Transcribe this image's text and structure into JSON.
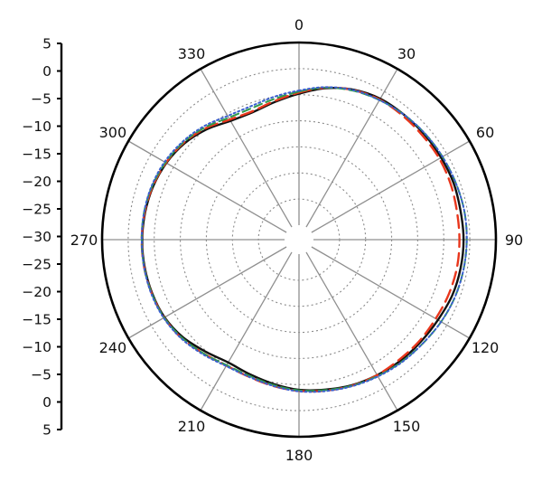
{
  "chart_data": {
    "type": "polar-line",
    "title": "",
    "angle_labels": [
      "0",
      "30",
      "60",
      "90",
      "120",
      "150",
      "180",
      "210",
      "240",
      "270",
      "300",
      "330"
    ],
    "radial_axis": {
      "tick_labels": [
        "5",
        "0",
        "−5",
        "−10",
        "−15",
        "−20",
        "−25",
        "−30",
        "−25",
        "−20",
        "−15",
        "−10",
        "−5",
        "0",
        "5"
      ],
      "min": -30,
      "max": 5,
      "step": 5
    },
    "grid": true,
    "legend": "none",
    "series": [
      {
        "color": "#111111",
        "dash": "solid",
        "points": [
          {
            "angle": 0,
            "value": -4.8
          },
          {
            "angle": 10,
            "value": -3.3
          },
          {
            "angle": 20,
            "value": -2.2
          },
          {
            "angle": 30,
            "value": -1.6
          },
          {
            "angle": 40,
            "value": -1.5
          },
          {
            "angle": 50,
            "value": -1.4
          },
          {
            "angle": 60,
            "value": -1.3
          },
          {
            "angle": 70,
            "value": -1.2
          },
          {
            "angle": 80,
            "value": -1.3
          },
          {
            "angle": 90,
            "value": -1.2
          },
          {
            "angle": 100,
            "value": -1.3
          },
          {
            "angle": 110,
            "value": -1.5
          },
          {
            "angle": 120,
            "value": -2.0
          },
          {
            "angle": 130,
            "value": -2.3
          },
          {
            "angle": 140,
            "value": -2.5
          },
          {
            "angle": 150,
            "value": -2.8
          },
          {
            "angle": 160,
            "value": -3.1
          },
          {
            "angle": 170,
            "value": -3.6
          },
          {
            "angle": 180,
            "value": -4.0
          },
          {
            "angle": 190,
            "value": -4.7
          },
          {
            "angle": 200,
            "value": -5.3
          },
          {
            "angle": 210,
            "value": -5.6
          },
          {
            "angle": 220,
            "value": -4.8
          },
          {
            "angle": 230,
            "value": -3.7
          },
          {
            "angle": 240,
            "value": -3.0
          },
          {
            "angle": 250,
            "value": -2.8
          },
          {
            "angle": 260,
            "value": -2.7
          },
          {
            "angle": 270,
            "value": -2.7
          },
          {
            "angle": 280,
            "value": -2.8
          },
          {
            "angle": 290,
            "value": -3.0
          },
          {
            "angle": 300,
            "value": -3.4
          },
          {
            "angle": 310,
            "value": -4.1
          },
          {
            "angle": 320,
            "value": -5.2
          },
          {
            "angle": 330,
            "value": -6.5
          },
          {
            "angle": 340,
            "value": -6.8
          },
          {
            "angle": 350,
            "value": -6.0
          }
        ]
      },
      {
        "color": "#e8361c",
        "dash": "long-dash",
        "points": [
          {
            "angle": 0,
            "value": -4.6
          },
          {
            "angle": 10,
            "value": -3.2
          },
          {
            "angle": 20,
            "value": -2.3
          },
          {
            "angle": 30,
            "value": -1.8
          },
          {
            "angle": 40,
            "value": -1.8
          },
          {
            "angle": 50,
            "value": -1.8
          },
          {
            "angle": 60,
            "value": -1.7
          },
          {
            "angle": 70,
            "value": -1.8
          },
          {
            "angle": 80,
            "value": -2.0
          },
          {
            "angle": 90,
            "value": -2.0
          },
          {
            "angle": 100,
            "value": -2.0
          },
          {
            "angle": 110,
            "value": -2.2
          },
          {
            "angle": 120,
            "value": -2.5
          },
          {
            "angle": 130,
            "value": -2.6
          },
          {
            "angle": 140,
            "value": -2.8
          },
          {
            "angle": 150,
            "value": -2.8
          },
          {
            "angle": 160,
            "value": -3.0
          },
          {
            "angle": 170,
            "value": -3.4
          },
          {
            "angle": 180,
            "value": -3.8
          },
          {
            "angle": 190,
            "value": -4.3
          },
          {
            "angle": 200,
            "value": -4.8
          },
          {
            "angle": 210,
            "value": -4.9
          },
          {
            "angle": 220,
            "value": -4.3
          },
          {
            "angle": 230,
            "value": -3.4
          },
          {
            "angle": 240,
            "value": -2.9
          },
          {
            "angle": 250,
            "value": -2.7
          },
          {
            "angle": 260,
            "value": -2.6
          },
          {
            "angle": 270,
            "value": -2.6
          },
          {
            "angle": 280,
            "value": -2.7
          },
          {
            "angle": 290,
            "value": -2.9
          },
          {
            "angle": 300,
            "value": -3.3
          },
          {
            "angle": 310,
            "value": -3.9
          },
          {
            "angle": 320,
            "value": -4.9
          },
          {
            "angle": 330,
            "value": -6.2
          },
          {
            "angle": 340,
            "value": -6.6
          },
          {
            "angle": 350,
            "value": -5.8
          }
        ]
      },
      {
        "color": "#2f9a4c",
        "dash": "dash",
        "points": [
          {
            "angle": 0,
            "value": -4.4
          },
          {
            "angle": 10,
            "value": -3.2
          },
          {
            "angle": 20,
            "value": -2.4
          },
          {
            "angle": 30,
            "value": -1.9
          },
          {
            "angle": 40,
            "value": -1.5
          },
          {
            "angle": 50,
            "value": -1.2
          },
          {
            "angle": 60,
            "value": -1.0
          },
          {
            "angle": 70,
            "value": -0.8
          },
          {
            "angle": 80,
            "value": -0.6
          },
          {
            "angle": 90,
            "value": -0.6
          },
          {
            "angle": 100,
            "value": -0.7
          },
          {
            "angle": 110,
            "value": -0.9
          },
          {
            "angle": 120,
            "value": -1.3
          },
          {
            "angle": 130,
            "value": -1.8
          },
          {
            "angle": 140,
            "value": -2.2
          },
          {
            "angle": 150,
            "value": -2.6
          },
          {
            "angle": 160,
            "value": -3.0
          },
          {
            "angle": 170,
            "value": -3.5
          },
          {
            "angle": 180,
            "value": -3.9
          },
          {
            "angle": 190,
            "value": -4.5
          },
          {
            "angle": 200,
            "value": -5.0
          },
          {
            "angle": 210,
            "value": -5.0
          },
          {
            "angle": 220,
            "value": -4.3
          },
          {
            "angle": 230,
            "value": -3.5
          },
          {
            "angle": 240,
            "value": -2.9
          },
          {
            "angle": 250,
            "value": -2.7
          },
          {
            "angle": 260,
            "value": -2.6
          },
          {
            "angle": 270,
            "value": -2.6
          },
          {
            "angle": 280,
            "value": -2.6
          },
          {
            "angle": 290,
            "value": -2.8
          },
          {
            "angle": 300,
            "value": -3.2
          },
          {
            "angle": 310,
            "value": -3.8
          },
          {
            "angle": 320,
            "value": -4.7
          },
          {
            "angle": 330,
            "value": -5.8
          },
          {
            "angle": 340,
            "value": -6.0
          },
          {
            "angle": 350,
            "value": -5.4
          }
        ]
      },
      {
        "color": "#3a5fd0",
        "dash": "dot",
        "points": [
          {
            "angle": 0,
            "value": -4.2
          },
          {
            "angle": 10,
            "value": -3.1
          },
          {
            "angle": 20,
            "value": -2.3
          },
          {
            "angle": 30,
            "value": -1.9
          },
          {
            "angle": 40,
            "value": -1.5
          },
          {
            "angle": 50,
            "value": -1.2
          },
          {
            "angle": 60,
            "value": -1.0
          },
          {
            "angle": 70,
            "value": -0.8
          },
          {
            "angle": 80,
            "value": -0.6
          },
          {
            "angle": 90,
            "value": -0.6
          },
          {
            "angle": 100,
            "value": -0.7
          },
          {
            "angle": 110,
            "value": -0.9
          },
          {
            "angle": 120,
            "value": -1.3
          },
          {
            "angle": 130,
            "value": -1.8
          },
          {
            "angle": 140,
            "value": -2.1
          },
          {
            "angle": 150,
            "value": -2.5
          },
          {
            "angle": 160,
            "value": -2.9
          },
          {
            "angle": 170,
            "value": -3.3
          },
          {
            "angle": 180,
            "value": -3.7
          },
          {
            "angle": 190,
            "value": -4.3
          },
          {
            "angle": 200,
            "value": -4.8
          },
          {
            "angle": 210,
            "value": -4.8
          },
          {
            "angle": 220,
            "value": -4.1
          },
          {
            "angle": 230,
            "value": -3.3
          },
          {
            "angle": 240,
            "value": -2.8
          },
          {
            "angle": 250,
            "value": -2.6
          },
          {
            "angle": 260,
            "value": -2.6
          },
          {
            "angle": 270,
            "value": -2.6
          },
          {
            "angle": 280,
            "value": -2.6
          },
          {
            "angle": 290,
            "value": -2.7
          },
          {
            "angle": 300,
            "value": -3.0
          },
          {
            "angle": 310,
            "value": -3.6
          },
          {
            "angle": 320,
            "value": -4.4
          },
          {
            "angle": 330,
            "value": -5.4
          },
          {
            "angle": 340,
            "value": -5.6
          },
          {
            "angle": 350,
            "value": -5.0
          }
        ]
      }
    ]
  }
}
